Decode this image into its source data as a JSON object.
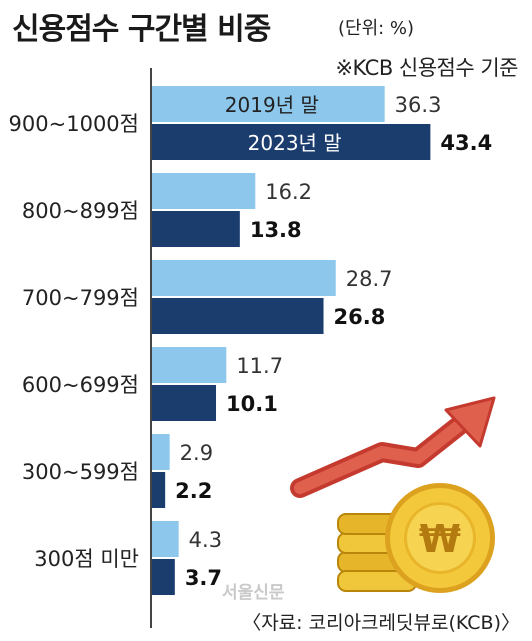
{
  "title": "신용점수 구간별 비중",
  "unit": "(단위: %)",
  "basis": "※KCB 신용점수 기준",
  "source": "〈자료: 코리아크레딧뷰로(KCB)〉",
  "watermark": "서울신문",
  "colors": {
    "old": "#8dc8ec",
    "new": "#1a3d6e",
    "axis": "#444444"
  },
  "icons": [
    "trend-up-arrow-icon",
    "won-coin-stack-icon"
  ],
  "chart_data": {
    "type": "bar",
    "orientation": "horizontal",
    "categories": [
      "900~1000점",
      "800~899점",
      "700~799점",
      "600~699점",
      "300~599점",
      "300점 미만"
    ],
    "series": [
      {
        "name": "2019년 말",
        "values": [
          36.3,
          16.2,
          28.7,
          11.7,
          2.9,
          4.3
        ]
      },
      {
        "name": "2023년 말",
        "values": [
          43.4,
          13.8,
          26.8,
          10.1,
          2.2,
          3.7
        ]
      }
    ],
    "xlim": [
      0,
      48
    ],
    "grid": false,
    "legend": "inside-first-group"
  }
}
